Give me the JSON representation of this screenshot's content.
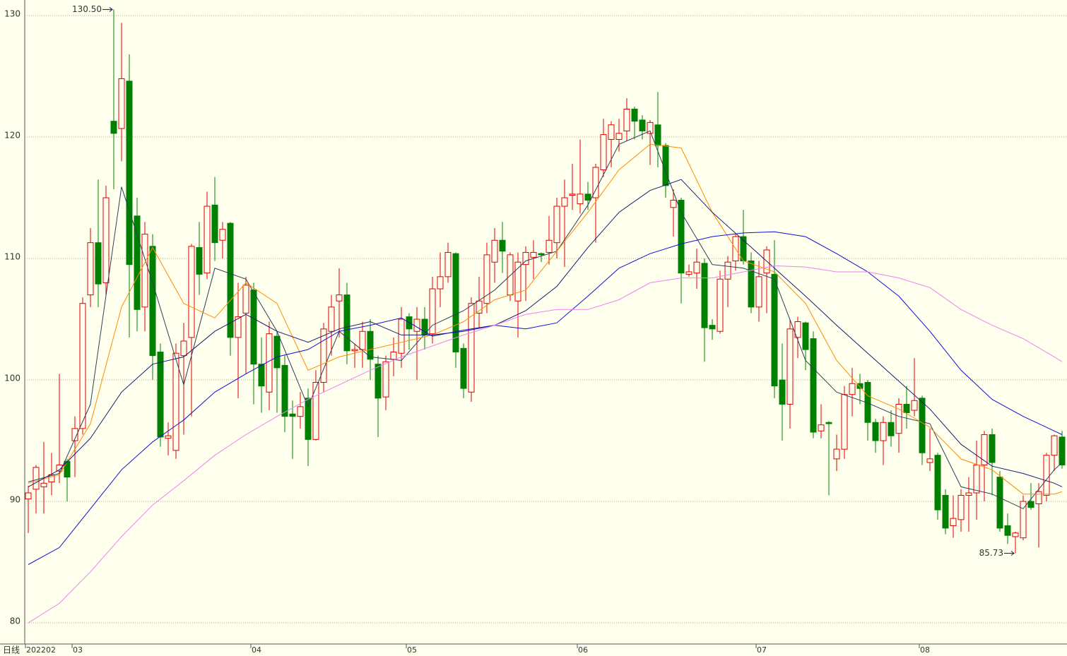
{
  "chart_data": {
    "type": "candlestick",
    "period_label": "日线",
    "categories": [
      "202202",
      null,
      null,
      null,
      null,
      null,
      "03",
      null,
      null,
      null,
      null,
      null,
      null,
      null,
      null,
      null,
      null,
      null,
      null,
      null,
      null,
      null,
      null,
      null,
      null,
      null,
      null,
      null,
      null,
      "04",
      null,
      null,
      null,
      null,
      null,
      null,
      null,
      null,
      null,
      null,
      null,
      null,
      null,
      null,
      null,
      null,
      null,
      null,
      null,
      "05",
      null,
      null,
      null,
      null,
      null,
      null,
      null,
      null,
      null,
      null,
      null,
      null,
      null,
      null,
      null,
      null,
      null,
      null,
      null,
      null,
      null,
      "06",
      null,
      null,
      null,
      null,
      null,
      null,
      null,
      null,
      null,
      null,
      null,
      null,
      null,
      null,
      null,
      null,
      null,
      null,
      null,
      null,
      null,
      null,
      "07",
      null,
      null,
      null,
      null,
      null,
      null,
      null,
      null,
      null,
      null,
      null,
      null,
      null,
      null,
      null,
      null,
      null,
      null,
      null,
      null,
      "08",
      null,
      null,
      null,
      null,
      null,
      null,
      null,
      null,
      null,
      null,
      null,
      null,
      null,
      null,
      null,
      null,
      null,
      null
    ],
    "open": [
      90.2,
      91,
      91.2,
      91.6,
      92.5,
      93.3,
      95,
      96,
      107,
      111.3,
      108,
      121.3,
      120.7,
      124.6,
      113.5,
      106,
      111,
      102.3,
      95.2,
      94.2,
      102,
      103.5,
      110.9,
      108.8,
      114.4,
      111.5,
      112.9,
      103.5,
      105.5,
      107.4,
      101.3,
      99,
      103.6,
      101.2,
      97.2,
      97,
      98.5,
      95.1,
      99.8,
      104,
      106.5,
      107,
      102.4,
      102.5,
      104,
      101.3,
      98.6,
      101.7,
      102.2,
      105.2,
      104,
      105,
      103.8,
      107.5,
      108.5,
      110.4,
      102.6,
      99,
      105.5,
      106.3,
      109.7,
      111.5,
      107,
      106.5,
      109.5,
      110.1,
      110.4,
      110.5,
      111.3,
      114.3,
      115.2,
      114.5,
      115.3,
      115,
      117.3,
      119.8,
      119.8,
      120.5,
      122.3,
      121.4,
      120.3,
      121,
      119.3,
      114.2,
      114.8,
      108.7,
      108.8,
      109.6,
      104.5,
      104,
      108.3,
      109.8,
      111.8,
      109.8,
      106,
      108.8,
      108.7,
      100,
      98,
      103.5,
      104.7,
      103.4,
      95.8,
      96.5,
      93.5,
      94.3,
      98.8,
      99.7,
      99.8,
      96.5,
      95,
      96.5,
      95.6,
      98,
      97.5,
      98.5,
      93.2,
      93.8,
      90.5,
      88,
      88.5,
      90.5,
      90.7,
      93,
      95.5,
      92,
      88,
      87.1,
      87,
      90,
      89.8,
      90.5,
      93.8,
      95.3
    ],
    "high": [
      91.3,
      93,
      94.9,
      94,
      100.5,
      93.5,
      97,
      106.8,
      112.5,
      116.5,
      116,
      130.5,
      129.4,
      126.8,
      115,
      113,
      112,
      103,
      96.5,
      103,
      104.7,
      111.2,
      113,
      115.5,
      116.7,
      113,
      113,
      108,
      108.5,
      108,
      103.5,
      104.8,
      104,
      102,
      98.3,
      99,
      99.3,
      100.8,
      104.7,
      107,
      109.2,
      108,
      103,
      104.8,
      105,
      102,
      102,
      103.5,
      106,
      105.5,
      106,
      106,
      108.5,
      110.5,
      111.3,
      110.5,
      103,
      106.8,
      108.5,
      111.3,
      112.5,
      113,
      110.5,
      110.5,
      111,
      111.5,
      110.5,
      113.5,
      115,
      116.5,
      117.8,
      119.8,
      116.3,
      117.8,
      121.5,
      121.3,
      121.5,
      123.2,
      122.5,
      121.8,
      121.4,
      123.7,
      119.5,
      115.7,
      115,
      109.5,
      110.8,
      110,
      105,
      109,
      110.2,
      112,
      114,
      110.5,
      109.8,
      111,
      111.5,
      103,
      105,
      105.2,
      104.8,
      104,
      98,
      96.6,
      95.5,
      99.5,
      101,
      100.5,
      100,
      96.8,
      97,
      97.5,
      98.5,
      99.5,
      101.8,
      98.7,
      96,
      94,
      91,
      90.5,
      91,
      92,
      95,
      95.8,
      96,
      92.5,
      89,
      87.5,
      90.5,
      91.5,
      91.5,
      94,
      95.5,
      95.8
    ],
    "low": [
      87.4,
      89,
      89,
      90.5,
      91.5,
      90,
      92,
      95.5,
      106,
      106,
      107,
      115.7,
      118,
      103.5,
      104,
      104,
      100,
      94.5,
      93.8,
      93.5,
      95.5,
      97,
      107,
      108.3,
      109.8,
      110,
      102,
      98.5,
      100.5,
      98,
      97.3,
      97.5,
      97.3,
      95.7,
      93.5,
      96,
      92.9,
      95,
      99,
      102,
      103.5,
      101.3,
      101,
      101,
      100,
      95.3,
      97.5,
      100.3,
      101,
      102.5,
      100,
      102.5,
      103,
      106,
      108,
      101,
      98.5,
      98.2,
      104.3,
      105.5,
      108,
      108.8,
      106.5,
      103.5,
      106.5,
      108.3,
      109.7,
      109.5,
      110,
      109.3,
      114,
      113.7,
      114,
      111.3,
      116.7,
      117.5,
      118.8,
      119.7,
      119.8,
      119.8,
      117.7,
      117.5,
      115,
      111.8,
      106.3,
      108.5,
      107.5,
      101.5,
      103.3,
      103.8,
      106,
      109,
      109.5,
      105.5,
      104.8,
      105.5,
      98.5,
      95,
      96,
      101.8,
      100.8,
      95.2,
      95.2,
      90.5,
      92.5,
      93.5,
      97,
      98,
      95,
      94,
      93,
      94.5,
      94,
      96,
      97,
      93,
      92.5,
      88.5,
      87.3,
      87,
      87.5,
      87.5,
      88.5,
      90,
      90.5,
      87.5,
      86.5,
      85.73,
      86.8,
      89.3,
      86.2,
      90,
      92.5,
      92.7
    ],
    "close": [
      90.7,
      92.8,
      91.5,
      92.2,
      93,
      92,
      96,
      106.3,
      111.3,
      107.9,
      115,
      120.3,
      124.8,
      109.5,
      105.8,
      112,
      102,
      95.3,
      95.4,
      102.2,
      103.2,
      111,
      108.7,
      114.3,
      111.3,
      112.4,
      103.5,
      105.2,
      107.8,
      101.3,
      99.5,
      103.8,
      101,
      97,
      97,
      97.8,
      95.1,
      99.8,
      104.2,
      106,
      107,
      102.4,
      102.5,
      104,
      101.7,
      98.5,
      101.5,
      102.3,
      105,
      104.2,
      105,
      103.7,
      107.5,
      108.5,
      110.5,
      102.3,
      99.3,
      106.3,
      106.5,
      110.3,
      111.5,
      110.6,
      110.3,
      109.7,
      110.5,
      110.5,
      110.3,
      111.5,
      114.3,
      115,
      115.3,
      115.3,
      114.8,
      117.5,
      120.2,
      121,
      120.3,
      122.3,
      121.3,
      120.5,
      121.2,
      119.3,
      116,
      114.8,
      108.8,
      108.9,
      109.7,
      104.3,
      104.2,
      108.3,
      109.7,
      111.8,
      109.8,
      106,
      108.5,
      110.7,
      99.5,
      98,
      104.2,
      104.8,
      102.5,
      95.7,
      96.3,
      96.4,
      94.3,
      98.8,
      99.7,
      99.3,
      96.5,
      95,
      96.5,
      95.4,
      98,
      97.3,
      98.3,
      94,
      93.5,
      89.3,
      87.8,
      88.6,
      90.5,
      90.7,
      93,
      95.5,
      93.2,
      87.8,
      87.2,
      87.4,
      90,
      89.5,
      90.8,
      93.8,
      95.4,
      93
    ],
    "up_color": "#e00000",
    "down_color": "#008000",
    "series": [
      {
        "color": "#2b3f5c",
        "x": [
          0,
          4,
          8,
          12,
          16,
          20,
          24,
          28,
          32,
          36,
          40,
          44,
          48,
          52,
          56,
          60,
          64,
          68,
          72,
          76,
          80,
          84,
          88,
          92,
          96,
          100,
          104,
          108,
          112,
          116,
          120,
          124,
          128,
          132,
          133
        ],
        "values": [
          91.6,
          92.3,
          98,
          115.9,
          108,
          99.6,
          109.2,
          108.3,
          104,
          97.8,
          104,
          101.9,
          101.6,
          104.5,
          105.7,
          107.4,
          109.8,
          110.6,
          114.4,
          119.4,
          120.5,
          113.8,
          109.5,
          109.2,
          108.3,
          101.6,
          99,
          98.1,
          97,
          96.4,
          91.2,
          90.6,
          89.4,
          92.6,
          93.2
        ]
      },
      {
        "color": "#ff8c00",
        "x": [
          0,
          4,
          8,
          12,
          16,
          20,
          24,
          28,
          32,
          36,
          40,
          44,
          48,
          52,
          56,
          60,
          64,
          68,
          72,
          76,
          80,
          84,
          88,
          92,
          96,
          100,
          104,
          108,
          112,
          116,
          120,
          124,
          128,
          132,
          133
        ],
        "values": [
          91.5,
          92.2,
          96.4,
          106,
          110.9,
          106.3,
          105.1,
          108,
          106.3,
          100.8,
          101.9,
          102.5,
          103.1,
          103.7,
          104.8,
          106.6,
          107.4,
          110.6,
          113.8,
          117.3,
          119.4,
          119.1,
          113.8,
          109.8,
          108.9,
          106.3,
          101.6,
          98.7,
          97.6,
          96.1,
          93.5,
          92.6,
          90.6,
          90.6,
          90.8
        ]
      },
      {
        "color": "#1a1a70",
        "x": [
          0,
          4,
          8,
          12,
          16,
          20,
          24,
          28,
          32,
          36,
          40,
          44,
          48,
          52,
          56,
          60,
          64,
          68,
          72,
          76,
          80,
          84,
          88,
          92,
          96,
          100,
          104,
          108,
          112,
          116,
          120,
          124,
          128,
          132,
          133
        ],
        "values": [
          91.2,
          92.6,
          95.2,
          99,
          101.3,
          101.9,
          104,
          105.4,
          104,
          103.1,
          104.2,
          104.8,
          103.7,
          103.7,
          104,
          104.5,
          105.7,
          107.7,
          110.9,
          113.8,
          115.6,
          116.5,
          113.8,
          111.5,
          109.2,
          106.9,
          104.5,
          102.2,
          99.9,
          97.6,
          94.7,
          92.9,
          92.3,
          91.5,
          91.2
        ]
      },
      {
        "color": "#1010d0",
        "x": [
          0,
          4,
          8,
          12,
          16,
          20,
          24,
          28,
          32,
          36,
          40,
          44,
          48,
          52,
          56,
          60,
          64,
          68,
          72,
          76,
          80,
          84,
          88,
          92,
          96,
          100,
          104,
          108,
          112,
          116,
          120,
          124,
          128,
          132,
          133
        ],
        "values": [
          84.8,
          86.2,
          89.4,
          92.6,
          94.9,
          96.7,
          99,
          100.5,
          101.9,
          102.5,
          104,
          104.5,
          105.1,
          103.6,
          104.1,
          104.5,
          104.2,
          104.7,
          106.9,
          109.2,
          110.4,
          111.2,
          111.8,
          112.1,
          112.2,
          111.8,
          110.4,
          108.9,
          106.9,
          104,
          100.8,
          98.4,
          97,
          95.8,
          95.5
        ]
      },
      {
        "color": "#ee82ee",
        "x": [
          0,
          4,
          8,
          12,
          16,
          20,
          24,
          28,
          32,
          36,
          40,
          44,
          48,
          52,
          56,
          60,
          64,
          68,
          72,
          76,
          80,
          84,
          88,
          92,
          96,
          100,
          104,
          108,
          112,
          116,
          120,
          124,
          128,
          132,
          133
        ],
        "values": [
          80,
          81.6,
          84.2,
          87.1,
          89.7,
          91.7,
          93.8,
          95.5,
          97,
          98.4,
          99.6,
          100.8,
          101.9,
          102.8,
          103.7,
          104.5,
          105.4,
          105.8,
          105.8,
          106.6,
          108,
          108.4,
          108.4,
          108.9,
          109.4,
          109.3,
          108.9,
          108.9,
          108.4,
          107.6,
          105.8,
          104.5,
          103.4,
          101.9,
          101.5
        ]
      }
    ],
    "annotations": [
      {
        "text": "130.50",
        "index": 11,
        "value": 130.5
      },
      {
        "text": "85.73",
        "index": 127,
        "value": 85.73
      }
    ],
    "ylim": [
      78.26,
      131.28
    ],
    "yticks": [
      80,
      90,
      100,
      110,
      120,
      130
    ],
    "grid": true
  }
}
